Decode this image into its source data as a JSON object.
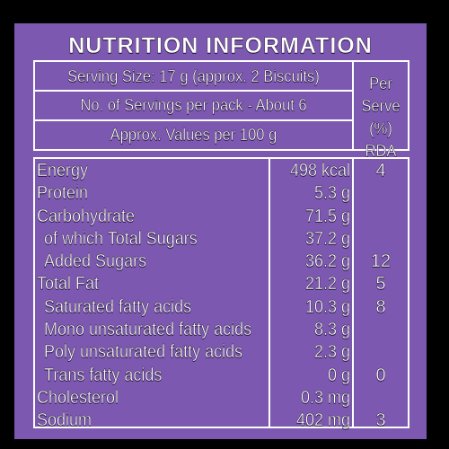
{
  "title": "NUTRITION INFORMATION",
  "header": {
    "serving_size": "Serving Size: 17 g (approx. 2 Biscuits)",
    "servings_per_pack": "No. of Servings per pack - About 6",
    "values_basis": "Approx. Values per 100 g",
    "rda_label_line1": "Per",
    "rda_label_line2": "Serve",
    "rda_label_line3": "(%) RDA"
  },
  "nutrients": [
    {
      "name": "Energy",
      "value": "498 kcal",
      "rda": "4",
      "indent": false
    },
    {
      "name": "Protein",
      "value": "5.3 g",
      "rda": "",
      "indent": false
    },
    {
      "name": "Carbohydrate",
      "value": "71.5 g",
      "rda": "",
      "indent": false
    },
    {
      "name": "of which Total Sugars",
      "value": "37.2 g",
      "rda": "",
      "indent": true
    },
    {
      "name": "Added Sugars",
      "value": "36.2 g",
      "rda": "12",
      "indent": true
    },
    {
      "name": "Total Fat",
      "value": "21.2 g",
      "rda": "5",
      "indent": false
    },
    {
      "name": "Saturated fatty acids",
      "value": "10.3 g",
      "rda": "8",
      "indent": true
    },
    {
      "name": "Mono unsaturated fatty acids",
      "value": "8.3 g",
      "rda": "",
      "indent": true
    },
    {
      "name": "Poly unsaturated fatty acids",
      "value": "2.3 g",
      "rda": "",
      "indent": true
    },
    {
      "name": "Trans fatty acids",
      "value": "0 g",
      "rda": "0",
      "indent": true
    },
    {
      "name": "Cholesterol",
      "value": "0.3 mg",
      "rda": "",
      "indent": false
    },
    {
      "name": "Sodium",
      "value": "402 mg",
      "rda": "3",
      "indent": false
    }
  ],
  "colors": {
    "panel_background": "#7d58b1",
    "outer_background": "#000000",
    "text": "#ffffff",
    "rules": "#ffffff"
  }
}
